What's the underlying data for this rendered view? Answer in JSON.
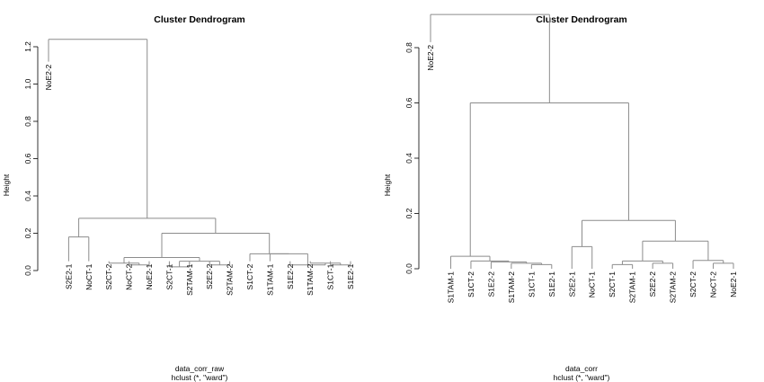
{
  "chart_data": [
    {
      "type": "dendrogram",
      "title": "Cluster Dendrogram",
      "ylabel": "Height",
      "xlabel": "data_corr_raw",
      "sub": "hclust (*, \"ward\")",
      "ylim": [
        0,
        1.25
      ],
      "yticks": [
        0.0,
        0.2,
        0.4,
        0.6,
        0.8,
        1.0,
        1.2
      ],
      "ytick_labels": [
        "0.0",
        "0.2",
        "0.4",
        "0.6",
        "0.8",
        "1.0",
        "1.2"
      ],
      "leaves": [
        "NoE2-2",
        "S2E2-1",
        "NoCT-1",
        "S2CT-2",
        "NoCT-2",
        "NoE2-1",
        "S2CT-1",
        "S2TAM-1",
        "S2E2-2",
        "S2TAM-2",
        "S1CT-2",
        "S1TAM-1",
        "S1E2-2",
        "S1TAM-2",
        "S1CT-1",
        "S1E2-1"
      ],
      "leaf_heights": [
        1.12,
        0.05,
        0.05,
        0.05,
        0.05,
        0.05,
        0.05,
        0.05,
        0.05,
        0.05,
        0.05,
        0.05,
        0.05,
        0.05,
        0.05,
        0.05
      ],
      "merges": [
        {
          "a": 14,
          "b": 15,
          "h": 0.03
        },
        {
          "a": 13,
          "b": -1,
          "h": 0.04
        },
        {
          "a": 12,
          "b": -2,
          "h": 0.03
        },
        {
          "a": 11,
          "b": -3,
          "h": 0.09
        },
        {
          "a": 10,
          "b": -4,
          "h": 0.09
        },
        {
          "a": 4,
          "b": 5,
          "h": 0.03
        },
        {
          "a": 3,
          "b": -6,
          "h": 0.04
        },
        {
          "a": 6,
          "b": 7,
          "h": 0.02
        },
        {
          "a": 8,
          "b": 9,
          "h": 0.03
        },
        {
          "a": -8,
          "b": -9,
          "h": 0.05
        },
        {
          "a": -7,
          "b": -10,
          "h": 0.07
        },
        {
          "a": -11,
          "b": -5,
          "h": 0.2
        },
        {
          "a": 1,
          "b": 2,
          "h": 0.18
        },
        {
          "a": -13,
          "b": -12,
          "h": 0.28
        },
        {
          "a": 0,
          "b": -14,
          "h": 1.24
        }
      ]
    },
    {
      "type": "dendrogram",
      "title": "Cluster Dendrogram",
      "ylabel": "Height",
      "xlabel": "data_corr",
      "sub": "hclust (*, \"ward\")",
      "ylim": [
        0,
        0.93
      ],
      "yticks": [
        0.0,
        0.2,
        0.4,
        0.6,
        0.8
      ],
      "ytick_labels": [
        "0.0",
        "0.2",
        "0.4",
        "0.6",
        "0.8"
      ],
      "leaves": [
        "NoE2-2",
        "S1TAM-1",
        "S1CT-2",
        "S1E2-2",
        "S1TAM-2",
        "S1CT-1",
        "S1E2-1",
        "S2E2-1",
        "NoCT-1",
        "S2CT-1",
        "S2TAM-1",
        "S2E2-2",
        "S2TAM-2",
        "S2CT-2",
        "NoCT-2",
        "NoE2-1"
      ],
      "leaf_heights": [
        0.82,
        0.0,
        0.0,
        0.0,
        0.0,
        0.0,
        0.0,
        0.0,
        0.0,
        0.0,
        0.0,
        0.0,
        0.0,
        0.0,
        0.0,
        0.0
      ],
      "merges": [
        {
          "a": 5,
          "b": 6,
          "h": 0.015
        },
        {
          "a": 4,
          "b": -1,
          "h": 0.02
        },
        {
          "a": 3,
          "b": -2,
          "h": 0.025
        },
        {
          "a": 2,
          "b": -3,
          "h": 0.028
        },
        {
          "a": 1,
          "b": -4,
          "h": 0.045
        },
        {
          "a": 9,
          "b": 10,
          "h": 0.015
        },
        {
          "a": 11,
          "b": 12,
          "h": 0.02
        },
        {
          "a": -6,
          "b": -7,
          "h": 0.028
        },
        {
          "a": 14,
          "b": 15,
          "h": 0.02
        },
        {
          "a": 13,
          "b": -9,
          "h": 0.03
        },
        {
          "a": -8,
          "b": -10,
          "h": 0.1
        },
        {
          "a": 7,
          "b": 8,
          "h": 0.08
        },
        {
          "a": -12,
          "b": -11,
          "h": 0.175
        },
        {
          "a": -5,
          "b": -13,
          "h": 0.6
        },
        {
          "a": 0,
          "b": -14,
          "h": 0.92
        }
      ]
    }
  ]
}
